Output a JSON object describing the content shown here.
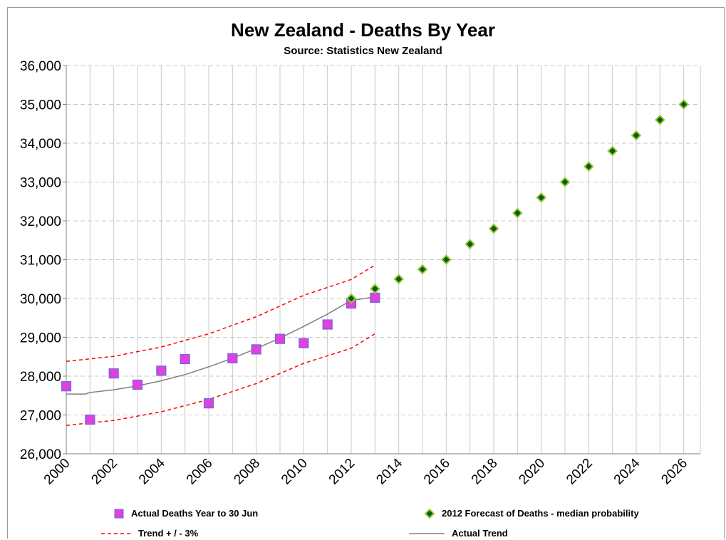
{
  "chart_data": {
    "type": "scatter",
    "title": "New Zealand - Deaths By Year",
    "subtitle": "Source: Statistics New Zealand",
    "xlabel": "",
    "ylabel": "",
    "xlim": [
      2000,
      2026.7
    ],
    "ylim": [
      26000,
      36000
    ],
    "x_ticks": [
      "2000",
      "2002",
      "2004",
      "2006",
      "2008",
      "2010",
      "2012",
      "2014",
      "2016",
      "2018",
      "2020",
      "2022",
      "2024",
      "2026"
    ],
    "y_ticks": [
      "26,000",
      "27,000",
      "28,000",
      "29,000",
      "30,000",
      "31,000",
      "32,000",
      "33,000",
      "34,000",
      "35,000",
      "36,000"
    ],
    "grid": true,
    "legend_position": "bottom",
    "series": [
      {
        "name": "Actual  Deaths Year to 30 Jun",
        "kind": "marker-square",
        "color": "#e040e0",
        "edge": "#6b6bd6",
        "x": [
          2000,
          2001,
          2002,
          2003,
          2004,
          2005,
          2006,
          2007,
          2008,
          2009,
          2010,
          2011,
          2012,
          2013
        ],
        "y": [
          27740,
          26880,
          28070,
          27780,
          28140,
          28440,
          27300,
          28460,
          28690,
          28960,
          28850,
          29330,
          29870,
          30020
        ]
      },
      {
        "name": "2012 Forecast of Deaths - median probability",
        "kind": "marker-diamond",
        "color": "#0e5a1a",
        "edge": "#9acd32",
        "x": [
          2012,
          2013,
          2014,
          2015,
          2016,
          2017,
          2018,
          2019,
          2020,
          2021,
          2022,
          2023,
          2024,
          2025,
          2026
        ],
        "y": [
          30000,
          30250,
          30500,
          30750,
          31000,
          31400,
          31800,
          32200,
          32600,
          33000,
          33400,
          33800,
          34200,
          34600,
          35000
        ]
      },
      {
        "name": "Trend + / - 3%",
        "kind": "dashed-line",
        "color": "#ff0000",
        "upper": {
          "x": [
            2000,
            2002,
            2004,
            2006,
            2008,
            2010,
            2012,
            2013
          ],
          "y": [
            28380,
            28510,
            28750,
            29090,
            29530,
            30080,
            30490,
            30860
          ]
        },
        "lower": {
          "x": [
            2000,
            2002,
            2004,
            2006,
            2008,
            2010,
            2012,
            2013
          ],
          "y": [
            26730,
            26860,
            27080,
            27400,
            27810,
            28330,
            28720,
            29090
          ]
        }
      },
      {
        "name": "Actual Trend",
        "kind": "line",
        "color": "#808080",
        "x": [
          2000,
          2000.8,
          2001,
          2002,
          2003,
          2004,
          2005,
          2006,
          2007,
          2008,
          2009,
          2010,
          2011,
          2012,
          2013
        ],
        "y": [
          27540,
          27540,
          27580,
          27650,
          27750,
          27880,
          28040,
          28240,
          28460,
          28710,
          28980,
          29280,
          29600,
          29950,
          30040
        ]
      }
    ]
  }
}
